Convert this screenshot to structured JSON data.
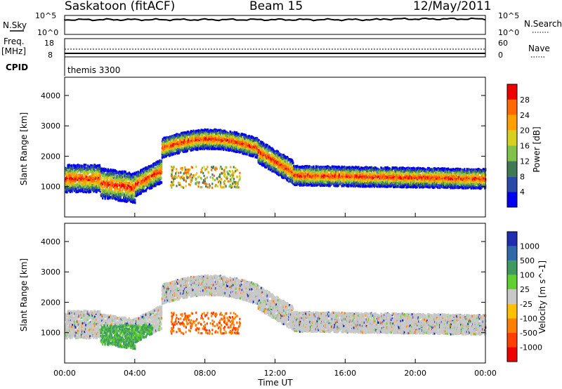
{
  "header": {
    "station": "Saskatoon (fitACF)",
    "beam": "Beam 15",
    "date": "12/May/2011"
  },
  "top_panels": {
    "nsky_label": "N.Sky",
    "nsky_tick_top": "10^5",
    "nsky_tick_bottom": "10^0",
    "nsearch_label": "N.Search",
    "nsearch_tick_top": "10^5",
    "nsearch_tick_bottom": "10^0",
    "freq_label_1": "Freq.",
    "freq_label_2": "[MHz]",
    "freq_tick_top": "18",
    "freq_tick_bottom": "8",
    "nave_label": "Nave",
    "nave_tick_top": "60",
    "nave_tick_bottom": "0",
    "cpid_label": "CPID",
    "cpid_value": "themis 3300"
  },
  "chart_data": [
    {
      "type": "heatmap",
      "name": "power",
      "ylabel": "Slant Range [km]",
      "ylim": [
        0,
        4600
      ],
      "yticks": [
        "1000",
        "2000",
        "3000",
        "4000"
      ],
      "xlim": [
        0,
        24
      ],
      "colorbar_label": "Power [dB]",
      "colorbar_ticks": [
        "4",
        "8",
        "12",
        "16",
        "20",
        "24",
        "28"
      ],
      "colors": [
        "#0000ee",
        "#2a4aa8",
        "#3f7a55",
        "#80c24a",
        "#d8d020",
        "#ffa000",
        "#ff6a00",
        "#ee0000"
      ]
    },
    {
      "type": "heatmap",
      "name": "velocity",
      "ylabel": "Slant Range [km]",
      "ylim": [
        0,
        4600
      ],
      "yticks": [
        "1000",
        "2000",
        "3000",
        "4000"
      ],
      "xlim": [
        0,
        24
      ],
      "xlabel": "Time UT",
      "xticks": [
        "00:00",
        "04:00",
        "08:00",
        "12:00",
        "16:00",
        "20:00",
        "00:00"
      ],
      "colorbar_label": "Velocity [m s^-1]",
      "colorbar_ticks": [
        "1000",
        "500",
        "100",
        "25",
        "-25",
        "-100",
        "-500",
        "-1000"
      ],
      "colors": [
        "#1f2eb0",
        "#2f6aa8",
        "#3f9a60",
        "#60d030",
        "#c8c8c8",
        "#ffc000",
        "#ff8000",
        "#ff4000",
        "#ee0000"
      ]
    }
  ]
}
